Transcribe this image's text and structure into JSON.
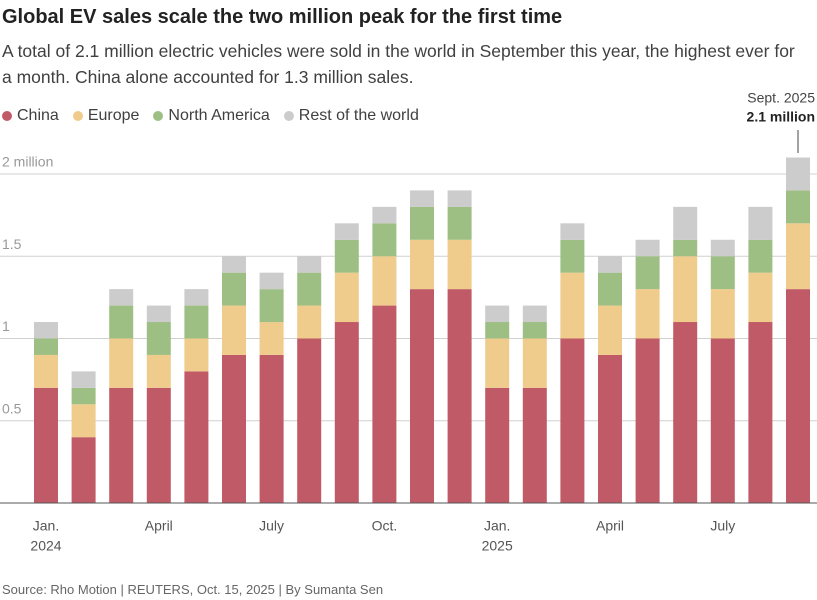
{
  "chart_data": {
    "type": "stacked_bar",
    "title": "Global EV sales scale the two million peak for the first time",
    "subtitle": "A total of 2.1 million electric vehicles were sold in the world in September this year, the highest ever for a month. China alone accounted for 1.3 million sales.",
    "source": "Source: Rho Motion | REUTERS, Oct. 15, 2025 | By Sumanta Sen",
    "categories": [
      "Jan.",
      null,
      null,
      "April",
      null,
      null,
      "July",
      null,
      null,
      "Oct.",
      null,
      null,
      "Jan.",
      null,
      null,
      "April",
      null,
      null,
      "July",
      null,
      null
    ],
    "years": [
      "2024",
      null,
      null,
      null,
      null,
      null,
      null,
      null,
      null,
      null,
      null,
      null,
      "2025",
      null,
      null,
      null,
      null,
      null,
      null,
      null,
      null
    ],
    "series": [
      {
        "name": "China",
        "color": "#c05a66",
        "values": [
          0.7,
          0.4,
          0.7,
          0.7,
          0.8,
          0.9,
          0.9,
          1.0,
          1.1,
          1.2,
          1.3,
          1.3,
          0.7,
          0.7,
          1.0,
          0.9,
          1.0,
          1.1,
          1.0,
          1.1,
          1.3
        ]
      },
      {
        "name": "Europe",
        "color": "#efcb8c",
        "values": [
          0.2,
          0.2,
          0.3,
          0.2,
          0.2,
          0.3,
          0.2,
          0.2,
          0.3,
          0.3,
          0.3,
          0.3,
          0.3,
          0.3,
          0.4,
          0.3,
          0.3,
          0.4,
          0.3,
          0.3,
          0.4
        ]
      },
      {
        "name": "North America",
        "color": "#9dbf83",
        "values": [
          0.1,
          0.1,
          0.2,
          0.2,
          0.2,
          0.2,
          0.2,
          0.2,
          0.2,
          0.2,
          0.2,
          0.2,
          0.1,
          0.1,
          0.2,
          0.2,
          0.2,
          0.1,
          0.2,
          0.2,
          0.2
        ]
      },
      {
        "name": "Rest of the world",
        "color": "#cccccc",
        "values": [
          0.1,
          0.1,
          0.1,
          0.1,
          0.1,
          0.1,
          0.1,
          0.1,
          0.1,
          0.1,
          0.1,
          0.1,
          0.1,
          0.1,
          0.1,
          0.1,
          0.1,
          0.2,
          0.1,
          0.2,
          0.2
        ]
      }
    ],
    "ylim": [
      0,
      2.1
    ],
    "yticks": [
      0.5,
      1,
      1.5,
      {
        "value": 2,
        "label": "2 million"
      }
    ],
    "grid": true,
    "annotation": {
      "label": "Sept. 2025",
      "value_text": "2.1 million"
    }
  }
}
